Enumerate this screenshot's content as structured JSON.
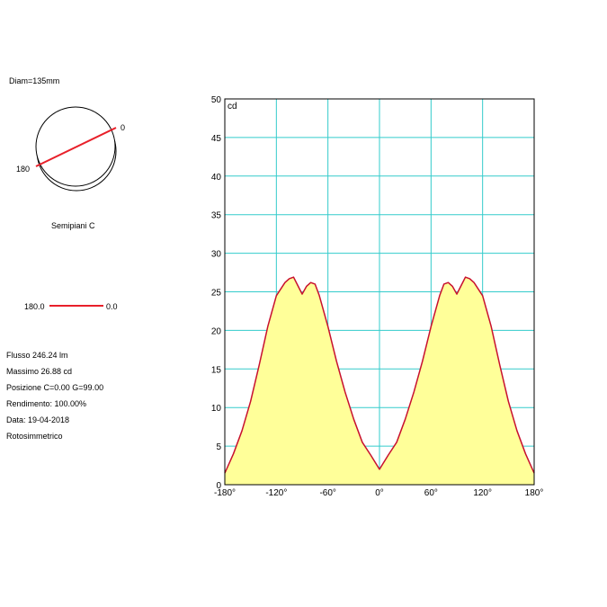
{
  "header": {
    "diameter": "Diam=135mm",
    "semipiani_label": "Semipiani C"
  },
  "polar_icon": {
    "label_start": "0",
    "label_end": "180",
    "line_color": "#e8202a"
  },
  "legend": {
    "from": "180.0",
    "to": "0.0",
    "line_color": "#e8202a"
  },
  "info": {
    "flusso": "Flusso 246.24  lm",
    "massimo": "Massimo 26.88  cd",
    "posizione": "Posizione C=0.00 G=99.00",
    "rendimento": "Rendimento: 100.00%",
    "data": "Data: 19-04-2018",
    "tipo": "Rotosimmetrico"
  },
  "chart_data": {
    "type": "area",
    "ylabel": "cd",
    "xlim": [
      -180,
      180
    ],
    "ylim": [
      0,
      50
    ],
    "grid": true,
    "x_ticks": [
      "-180°",
      "-120°",
      "-60°",
      "0°",
      "60°",
      "120°",
      "180°"
    ],
    "x_tick_values": [
      -180,
      -120,
      -60,
      0,
      60,
      120,
      180
    ],
    "y_ticks": [
      "0",
      "5",
      "10",
      "15",
      "20",
      "25",
      "30",
      "35",
      "40",
      "45",
      "50"
    ],
    "y_tick_values": [
      0,
      5,
      10,
      15,
      20,
      25,
      30,
      35,
      40,
      45,
      50
    ],
    "line_color": "#c8102e",
    "fill_color": "#ffff99",
    "grid_color": "#33cccc",
    "series": [
      {
        "x": [
          -180,
          -170,
          -160,
          -150,
          -140,
          -130,
          -120,
          -110,
          -105,
          -100,
          -95,
          -90,
          -85,
          -80,
          -75,
          -70,
          -60,
          -50,
          -40,
          -30,
          -20,
          -10,
          0,
          10,
          20,
          30,
          40,
          50,
          60,
          70,
          75,
          80,
          85,
          90,
          95,
          100,
          105,
          110,
          120,
          130,
          140,
          150,
          160,
          170,
          180
        ],
        "y": [
          1.5,
          4.0,
          7.0,
          10.8,
          15.5,
          20.5,
          24.5,
          26.2,
          26.7,
          26.9,
          25.8,
          24.7,
          25.7,
          26.2,
          26.0,
          24.5,
          20.5,
          16.0,
          12.0,
          8.5,
          5.5,
          3.8,
          2.0,
          3.8,
          5.5,
          8.5,
          12.0,
          16.0,
          20.5,
          24.5,
          26.0,
          26.2,
          25.7,
          24.7,
          25.8,
          26.9,
          26.7,
          26.2,
          24.5,
          20.5,
          15.5,
          10.8,
          7.0,
          4.0,
          1.5
        ]
      }
    ]
  }
}
